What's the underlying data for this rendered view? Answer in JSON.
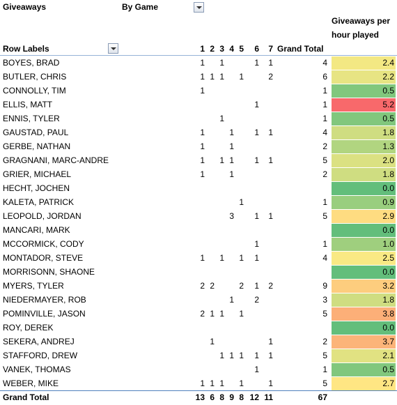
{
  "header": {
    "title": "Giveaways",
    "filter": "By Game",
    "row_labels": "Row Labels",
    "columns": [
      "1",
      "2",
      "3",
      "4",
      "5",
      "6",
      "7"
    ],
    "grand_total": "Grand Total",
    "rate": "Giveaways per hour played"
  },
  "color_scale": [
    "#63be7b",
    "#ffeb84",
    "#f8696b"
  ],
  "rows": [
    {
      "name": "BOYES, BRAD",
      "games": [
        "1",
        null,
        "1",
        null,
        null,
        "1",
        "1"
      ],
      "total": "4",
      "rate": "2.4"
    },
    {
      "name": "BUTLER, CHRIS",
      "games": [
        "1",
        "1",
        "1",
        null,
        "1",
        null,
        "2"
      ],
      "total": "6",
      "rate": "2.2"
    },
    {
      "name": "CONNOLLY, TIM",
      "games": [
        "1",
        null,
        null,
        null,
        null,
        null,
        null
      ],
      "total": "1",
      "rate": "0.5"
    },
    {
      "name": "ELLIS, MATT",
      "games": [
        null,
        null,
        null,
        null,
        null,
        "1",
        null
      ],
      "total": "1",
      "rate": "5.2"
    },
    {
      "name": "ENNIS, TYLER",
      "games": [
        null,
        null,
        "1",
        null,
        null,
        null,
        null
      ],
      "total": "1",
      "rate": "0.5"
    },
    {
      "name": "GAUSTAD, PAUL",
      "games": [
        "1",
        null,
        null,
        "1",
        null,
        "1",
        "1"
      ],
      "total": "4",
      "rate": "1.8"
    },
    {
      "name": "GERBE, NATHAN",
      "games": [
        "1",
        null,
        null,
        "1",
        null,
        null,
        null
      ],
      "total": "2",
      "rate": "1.3"
    },
    {
      "name": "GRAGNANI, MARC-ANDRE",
      "games": [
        "1",
        null,
        "1",
        "1",
        null,
        "1",
        "1"
      ],
      "total": "5",
      "rate": "2.0"
    },
    {
      "name": "GRIER, MICHAEL",
      "games": [
        "1",
        null,
        null,
        "1",
        null,
        null,
        null
      ],
      "total": "2",
      "rate": "1.8"
    },
    {
      "name": "HECHT, JOCHEN",
      "games": [
        null,
        null,
        null,
        null,
        null,
        null,
        null
      ],
      "total": null,
      "rate": "0.0"
    },
    {
      "name": "KALETA, PATRICK",
      "games": [
        null,
        null,
        null,
        null,
        "1",
        null,
        null
      ],
      "total": "1",
      "rate": "0.9"
    },
    {
      "name": "LEOPOLD, JORDAN",
      "games": [
        null,
        null,
        null,
        "3",
        null,
        "1",
        "1"
      ],
      "total": "5",
      "rate": "2.9"
    },
    {
      "name": "MANCARI, MARK",
      "games": [
        null,
        null,
        null,
        null,
        null,
        null,
        null
      ],
      "total": null,
      "rate": "0.0"
    },
    {
      "name": "MCCORMICK, CODY",
      "games": [
        null,
        null,
        null,
        null,
        null,
        "1",
        null
      ],
      "total": "1",
      "rate": "1.0"
    },
    {
      "name": "MONTADOR, STEVE",
      "games": [
        "1",
        null,
        "1",
        null,
        "1",
        "1",
        null
      ],
      "total": "4",
      "rate": "2.5"
    },
    {
      "name": "MORRISONN, SHAONE",
      "games": [
        null,
        null,
        null,
        null,
        null,
        null,
        null
      ],
      "total": null,
      "rate": "0.0"
    },
    {
      "name": "MYERS, TYLER",
      "games": [
        "2",
        "2",
        null,
        null,
        "2",
        "1",
        "2"
      ],
      "total": "9",
      "rate": "3.2"
    },
    {
      "name": "NIEDERMAYER, ROB",
      "games": [
        null,
        null,
        null,
        "1",
        null,
        "2",
        null
      ],
      "total": "3",
      "rate": "1.8"
    },
    {
      "name": "POMINVILLE, JASON",
      "games": [
        "2",
        "1",
        "1",
        null,
        "1",
        null,
        null
      ],
      "total": "5",
      "rate": "3.8"
    },
    {
      "name": "ROY, DEREK",
      "games": [
        null,
        null,
        null,
        null,
        null,
        null,
        null
      ],
      "total": null,
      "rate": "0.0"
    },
    {
      "name": "SEKERA, ANDREJ",
      "games": [
        null,
        "1",
        null,
        null,
        null,
        null,
        "1"
      ],
      "total": "2",
      "rate": "3.7"
    },
    {
      "name": "STAFFORD, DREW",
      "games": [
        null,
        null,
        "1",
        "1",
        "1",
        "1",
        "1"
      ],
      "total": "5",
      "rate": "2.1"
    },
    {
      "name": "VANEK, THOMAS",
      "games": [
        null,
        null,
        null,
        null,
        null,
        "1",
        null
      ],
      "total": "1",
      "rate": "0.5"
    },
    {
      "name": "WEBER, MIKE",
      "games": [
        "1",
        "1",
        "1",
        null,
        "1",
        null,
        "1"
      ],
      "total": "5",
      "rate": "2.7"
    }
  ],
  "footer": {
    "label": "Grand Total",
    "games": [
      "13",
      "6",
      "8",
      "9",
      "8",
      "12",
      "11"
    ],
    "total": "67"
  }
}
